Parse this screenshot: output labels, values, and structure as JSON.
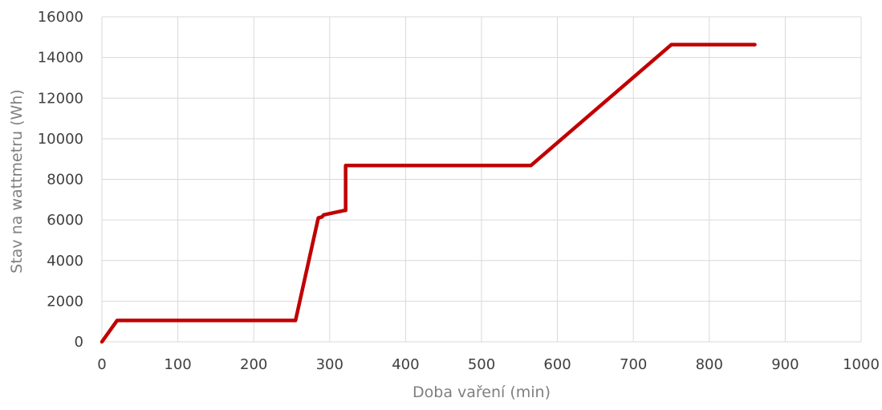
{
  "chart_data": {
    "type": "line",
    "title": "",
    "xlabel": "Doba vaření (min)",
    "ylabel": "Stav na wattmetru (Wh)",
    "xlim": [
      0,
      1000
    ],
    "ylim": [
      0,
      16000
    ],
    "x_ticks": [
      0,
      100,
      200,
      300,
      400,
      500,
      600,
      700,
      800,
      900,
      1000
    ],
    "y_ticks": [
      0,
      2000,
      4000,
      6000,
      8000,
      10000,
      12000,
      14000,
      16000
    ],
    "grid": true,
    "legend": "none",
    "series": [
      {
        "color": "#c00000",
        "x": [
          0,
          20,
          255,
          285,
          290,
          292,
          320,
          321,
          321,
          565,
          750,
          860
        ],
        "y": [
          0,
          1050,
          1050,
          6100,
          6150,
          6250,
          6470,
          6470,
          8680,
          8680,
          14630,
          14630
        ]
      }
    ]
  },
  "colors": {
    "grid": "#d9d9d9",
    "tick_text": "#404040",
    "axis_title": "#7f7f7f",
    "series": "#c00000"
  }
}
